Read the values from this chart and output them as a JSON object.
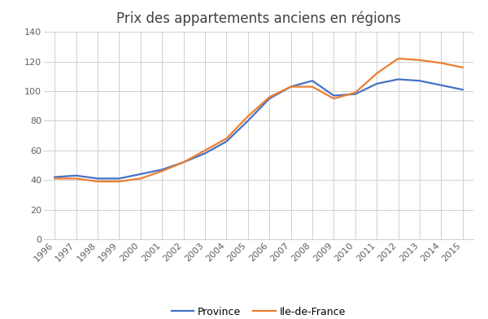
{
  "title": "Prix des appartements anciens en régions",
  "years": [
    1996,
    1997,
    1998,
    1999,
    2000,
    2001,
    2002,
    2003,
    2004,
    2005,
    2006,
    2007,
    2008,
    2009,
    2010,
    2011,
    2012,
    2013,
    2014,
    2015
  ],
  "province": [
    42,
    43,
    41,
    41,
    44,
    47,
    52,
    58,
    66,
    80,
    95,
    103,
    107,
    97,
    98,
    105,
    108,
    107,
    104,
    101
  ],
  "ile_de_france": [
    41,
    41,
    39,
    39,
    41,
    46,
    52,
    60,
    68,
    83,
    96,
    103,
    103,
    95,
    99,
    112,
    122,
    121,
    119,
    116
  ],
  "province_color": "#4472C4",
  "idf_color": "#ED7D31",
  "ylim": [
    0,
    140
  ],
  "yticks": [
    0,
    20,
    40,
    60,
    80,
    100,
    120,
    140
  ],
  "legend_province": "Province",
  "legend_idf": "Ile-de-France",
  "bg_color": "#ffffff",
  "grid_color": "#d0d0d0",
  "line_width": 1.6,
  "title_fontsize": 12,
  "tick_fontsize": 8
}
